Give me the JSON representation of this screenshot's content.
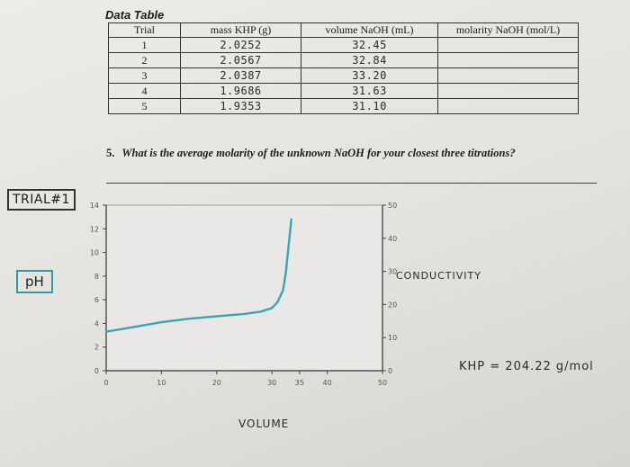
{
  "data_table": {
    "title": "Data Table",
    "headers": [
      "Trial",
      "mass KHP (g)",
      "volume NaOH (mL)",
      "molarity NaOH (mol/L)"
    ],
    "rows": [
      {
        "trial": "1",
        "mass": "2.0252",
        "volume": "32.45",
        "molarity": ""
      },
      {
        "trial": "2",
        "mass": "2.0567",
        "volume": "32.84",
        "molarity": ""
      },
      {
        "trial": "3",
        "mass": "2.0387",
        "volume": "33.20",
        "molarity": ""
      },
      {
        "trial": "4",
        "mass": "1.9686",
        "volume": "31.63",
        "molarity": ""
      },
      {
        "trial": "5",
        "mass": "1.9353",
        "volume": "31.10",
        "molarity": ""
      }
    ]
  },
  "question": {
    "number": "5.",
    "text": "What is the average molarity of the unknown NaOH for your closest three titrations?"
  },
  "annotations": {
    "trial_label": "TRIAL#1",
    "ph_label": "pH",
    "conductivity_label": "CONDUCTIVITY",
    "khp_note": "KHP = 204.22 g/mol",
    "volume_label": "VOLUME"
  },
  "chart_data": {
    "type": "line",
    "xlabel": "VOLUME",
    "ylabel": "pH",
    "y2label": "CONDUCTIVITY",
    "x_ticks": [
      "0",
      "10",
      "20",
      "30",
      "35",
      "40",
      "50"
    ],
    "y_ticks_left": [
      "0",
      "2",
      "4",
      "6",
      "8",
      "10",
      "12",
      "14"
    ],
    "y_ticks_right": [
      "0",
      "10",
      "20",
      "30",
      "40",
      "50"
    ],
    "xlim": [
      0,
      50
    ],
    "ylim": [
      0,
      14
    ],
    "series": [
      {
        "color": "#3aa6b5",
        "x": [
          0,
          5,
          10,
          15,
          20,
          25,
          28,
          30,
          31,
          32,
          32.5,
          33,
          33.5
        ],
        "y": [
          3.3,
          3.7,
          4.1,
          4.4,
          4.6,
          4.8,
          5.0,
          5.3,
          5.8,
          6.8,
          8.3,
          10.5,
          12.8
        ]
      }
    ],
    "grid": false
  }
}
